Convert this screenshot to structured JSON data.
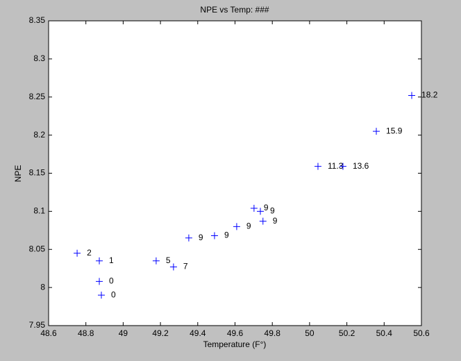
{
  "chart_data": {
    "type": "scatter",
    "title": "NPE vs Temp: ###",
    "xlabel": "Temperature (F°)",
    "ylabel": "NPE",
    "series": [
      {
        "color": "#0000ff",
        "x": [
          48.753,
          48.872,
          48.872,
          48.883,
          49.177,
          49.27,
          49.352,
          49.49,
          49.609,
          49.702,
          49.736,
          49.75,
          50.045,
          50.179,
          50.358,
          50.548
        ],
        "values": [
          8.045,
          8.035,
          8.008,
          7.99,
          8.035,
          8.027,
          8.065,
          8.068,
          8.08,
          8.104,
          8.1,
          8.087,
          8.159,
          8.159,
          8.205,
          8.252
        ],
        "point_labels": [
          "2",
          "1",
          "0",
          "0",
          "5",
          "7",
          "9",
          "9",
          "9",
          "9",
          "9",
          "9",
          "11.3",
          "13.6",
          "15.9",
          "18.2"
        ]
      }
    ],
    "xlim": [
      48.6,
      50.6
    ],
    "xticks": [
      48.6,
      48.8,
      49,
      49.2,
      49.4,
      49.6,
      49.8,
      50,
      50.2,
      50.4,
      50.6
    ],
    "ylim": [
      7.95,
      8.35
    ],
    "yticks": [
      7.95,
      8,
      8.05,
      8.1,
      8.15,
      8.2,
      8.25,
      8.3,
      8.35
    ],
    "grid": false
  }
}
